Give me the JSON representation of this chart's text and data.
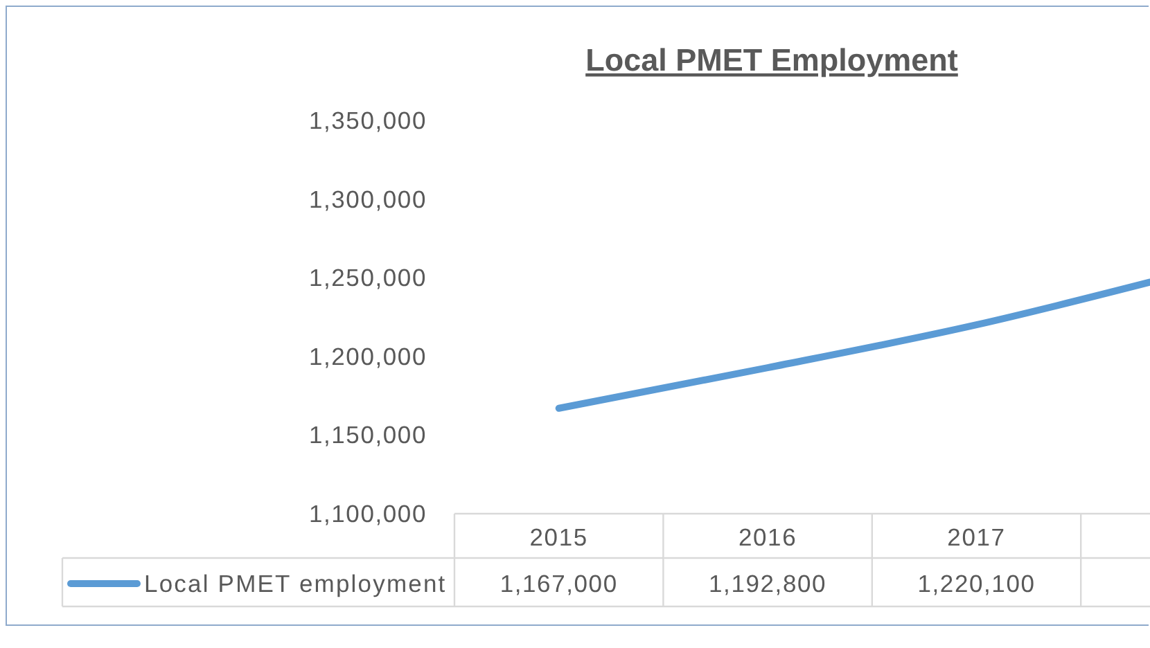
{
  "chart_data": {
    "type": "line",
    "title": "Local PMET Employment",
    "categories": [
      "2015",
      "2016",
      "2017",
      null
    ],
    "series": [
      {
        "name": "Local PMET employment",
        "color": "#5b9bd5",
        "values": [
          1167000,
          1192800,
          1220100,
          1253000
        ],
        "value_labels": [
          "1,167,000",
          "1,192,800",
          "1,220,100",
          null
        ]
      }
    ],
    "ylim": [
      1100000,
      1350000
    ],
    "yticks": [
      {
        "value": 1100000,
        "label": "1,100,000"
      },
      {
        "value": 1150000,
        "label": "1,150,000"
      },
      {
        "value": 1200000,
        "label": "1,200,000"
      },
      {
        "value": 1250000,
        "label": "1,250,000"
      },
      {
        "value": 1300000,
        "label": "1,300,000"
      },
      {
        "value": 1350000,
        "label": "1,350,000"
      }
    ],
    "legend": "bottom"
  }
}
